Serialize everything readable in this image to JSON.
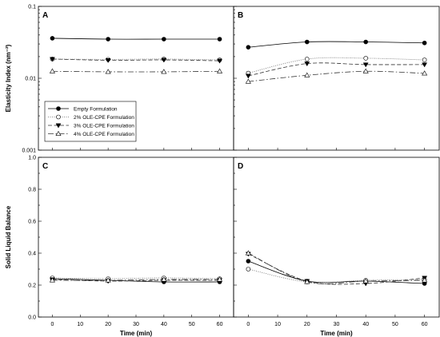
{
  "chart_data": [
    {
      "panel": "A",
      "type": "line",
      "yscale": "log",
      "ylim": [
        0.001,
        0.1
      ],
      "xlim": [
        -5,
        65
      ],
      "x": [
        0,
        20,
        40,
        60
      ],
      "xticks": [
        "0",
        "10",
        "20",
        "30",
        "40",
        "50",
        "60"
      ],
      "yticks": [
        "0.001",
        "0.01",
        "0.1"
      ],
      "ylabel": "Elasticity Index (nm⁻²)",
      "legend": {
        "placement": "lower-left"
      },
      "series": [
        {
          "name": "Empty Formulation",
          "values": [
            0.036,
            0.035,
            0.035,
            0.035
          ]
        },
        {
          "name": "2% OLE-CPE Formulation",
          "values": [
            0.0185,
            0.0183,
            0.0185,
            0.018
          ]
        },
        {
          "name": "3% OLE-CPE Formulation",
          "values": [
            0.0185,
            0.0178,
            0.018,
            0.0175
          ]
        },
        {
          "name": "4% OLE-CPE Formulation",
          "values": [
            0.0125,
            0.0123,
            0.0123,
            0.0125
          ]
        }
      ]
    },
    {
      "panel": "B",
      "type": "line",
      "yscale": "log",
      "ylim": [
        0.001,
        0.1
      ],
      "xlim": [
        -5,
        65
      ],
      "x": [
        0,
        20,
        40,
        60
      ],
      "xticks": [
        "0",
        "10",
        "20",
        "30",
        "40",
        "50",
        "60"
      ],
      "series": [
        {
          "name": "Empty Formulation",
          "values": [
            0.027,
            0.032,
            0.032,
            0.031
          ]
        },
        {
          "name": "2% OLE-CPE Formulation",
          "values": [
            0.0118,
            0.0185,
            0.019,
            0.018
          ]
        },
        {
          "name": "3% OLE-CPE Formulation",
          "values": [
            0.0108,
            0.016,
            0.0155,
            0.0155
          ]
        },
        {
          "name": "4% OLE-CPE Formulation",
          "values": [
            0.009,
            0.011,
            0.0125,
            0.0117
          ]
        }
      ]
    },
    {
      "panel": "C",
      "type": "line",
      "ylim": [
        0,
        1.0
      ],
      "xlim": [
        -5,
        65
      ],
      "x": [
        0,
        20,
        40,
        60
      ],
      "xticks": [
        "0",
        "10",
        "20",
        "30",
        "40",
        "50",
        "60"
      ],
      "yticks": [
        "0.0",
        "0.2",
        "0.4",
        "0.6",
        "0.8",
        "1.0"
      ],
      "xlabel": "Time (min)",
      "ylabel": "Solid Liquid Balance",
      "series": [
        {
          "name": "Empty Formulation",
          "values": [
            0.24,
            0.23,
            0.22,
            0.22
          ]
        },
        {
          "name": "2% OLE-CPE Formulation",
          "values": [
            0.245,
            0.24,
            0.245,
            0.24
          ]
        },
        {
          "name": "3% OLE-CPE Formulation",
          "values": [
            0.235,
            0.225,
            0.23,
            0.23
          ]
        },
        {
          "name": "4% OLE-CPE Formulation",
          "values": [
            0.23,
            0.23,
            0.235,
            0.235
          ]
        }
      ]
    },
    {
      "panel": "D",
      "type": "line",
      "ylim": [
        0,
        1.0
      ],
      "xlim": [
        -5,
        65
      ],
      "x": [
        0,
        20,
        40,
        60
      ],
      "xticks": [
        "0",
        "10",
        "20",
        "30",
        "40",
        "50",
        "60"
      ],
      "xlabel": "Time (min)",
      "series": [
        {
          "name": "Empty Formulation",
          "values": [
            0.35,
            0.225,
            0.225,
            0.21
          ]
        },
        {
          "name": "2% OLE-CPE Formulation",
          "values": [
            0.3,
            0.22,
            0.23,
            0.235
          ]
        },
        {
          "name": "3% OLE-CPE Formulation",
          "values": [
            0.395,
            0.225,
            0.21,
            0.245
          ]
        },
        {
          "name": "4% OLE-CPE Formulation",
          "values": [
            0.4,
            0.22,
            0.225,
            0.23
          ]
        }
      ]
    }
  ]
}
